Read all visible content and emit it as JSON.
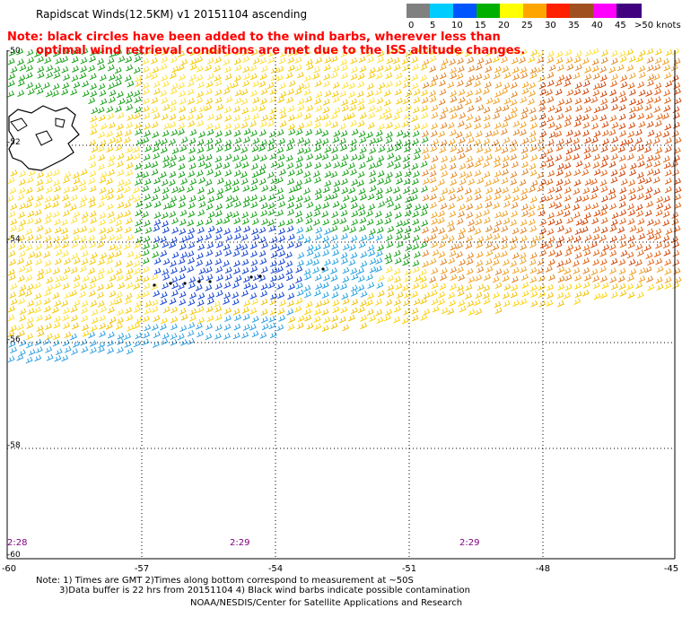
{
  "title": "Rapidscat Winds(12.5KM) v1 20151104 ascending",
  "note": {
    "line1": "Note: black circles have been added to the wind barbs, wherever less than",
    "line2": "optimal wind retrieval conditions are met due to the ISS altitude changes."
  },
  "legend": {
    "labels": [
      "0",
      "5",
      "10",
      "15",
      "20",
      "25",
      "30",
      "35",
      "40",
      "45",
      ">50 knots"
    ],
    "colors": [
      "#7f7f7f",
      "#00c8ff",
      "#0064ff",
      "#00b400",
      "#ffd700",
      "#ffa000",
      "#ff4000",
      "#b45a00",
      "#ff00ff",
      "#7800b4"
    ]
  },
  "map": {
    "lat_labels": [
      "-50",
      "-52",
      "-54",
      "-56",
      "-58",
      "-60"
    ],
    "lon_labels": [
      "-60",
      "-57",
      "-54",
      "-51",
      "-48",
      "-45"
    ],
    "times": [
      "2:28",
      "2:29",
      "2:29"
    ]
  },
  "footer": {
    "line1": "Note: 1) Times are GMT 2)Times along bottom correspond to measurement at ~50S",
    "line2": "3)Data buffer is 22 hrs from 20151104 4) Black wind barbs indicate possible contamination",
    "credit": "NOAA/NESDIS/Center for Satellite Applications and Research"
  }
}
